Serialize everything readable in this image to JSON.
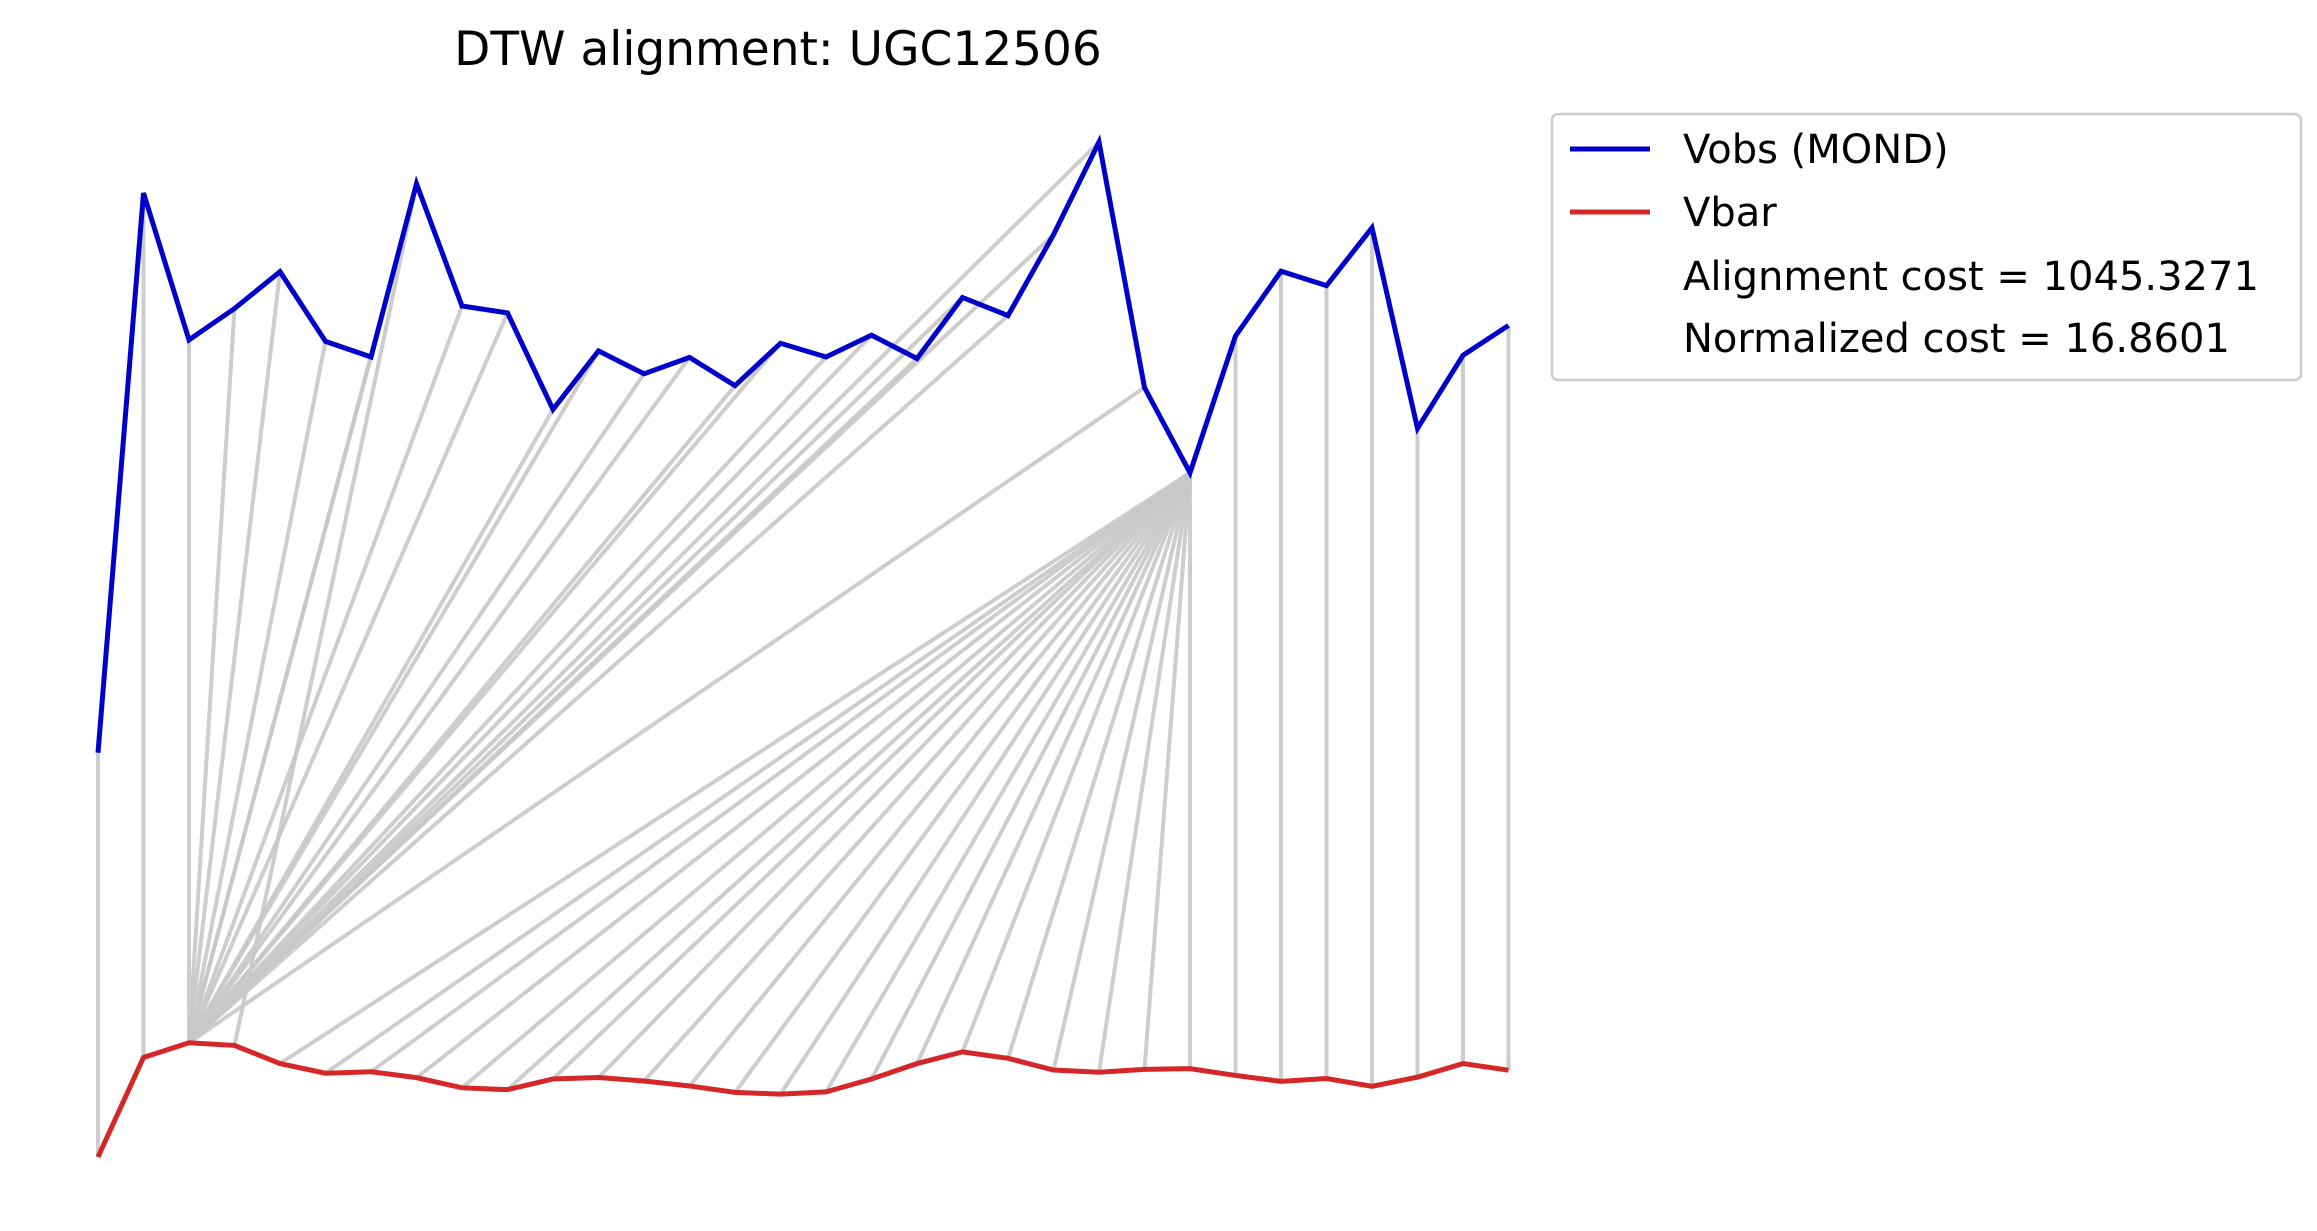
{
  "chart_data": {
    "type": "line",
    "title": "DTW alignment: UGC12506",
    "xlabel": "",
    "ylabel": "",
    "axes_visible": false,
    "grid": false,
    "legend_placement": "outside-upper-right",
    "index": [
      0,
      1,
      2,
      3,
      4,
      5,
      6,
      7,
      8,
      9,
      10,
      11,
      12,
      13,
      14,
      15,
      16,
      17,
      18,
      19,
      20,
      21,
      22,
      23,
      24,
      25,
      26,
      27,
      28,
      29,
      30,
      31
    ],
    "series": [
      {
        "name": "Vobs (MOND)",
        "color": "#0000cc",
        "values": [
          -85.0,
          245.1,
          158.5,
          177.0,
          198.7,
          157.6,
          148.4,
          250.6,
          178.5,
          174.4,
          117.5,
          152.0,
          138.5,
          148.2,
          131.5,
          156.5,
          148.4,
          161.3,
          147.5,
          183.5,
          172.8,
          220.5,
          275.2,
          130.4,
          80.1,
          160.8,
          199.0,
          190.5,
          224.6,
          106.3,
          149.4,
          167.0
        ]
      },
      {
        "name": "Vbar",
        "color": "#d62728",
        "values": [
          -323.4,
          -264.7,
          -256.0,
          -257.6,
          -268.3,
          -274.0,
          -273.1,
          -276.6,
          -282.6,
          -283.7,
          -277.4,
          -276.5,
          -278.6,
          -281.5,
          -285.3,
          -286.3,
          -285.0,
          -277.4,
          -268.3,
          -261.4,
          -265.2,
          -272.1,
          -273.4,
          -271.7,
          -271.3,
          -275.3,
          -278.8,
          -277.1,
          -281.7,
          -276.3,
          -268.3,
          -272.2
        ]
      }
    ],
    "alignment_lines_color": "#c8c8c8",
    "alignment_path": [
      [
        0,
        0
      ],
      [
        1,
        1
      ],
      [
        2,
        2
      ],
      [
        3,
        2
      ],
      [
        4,
        2
      ],
      [
        5,
        2
      ],
      [
        6,
        2
      ],
      [
        7,
        2
      ],
      [
        7,
        3
      ],
      [
        8,
        2
      ],
      [
        9,
        2
      ],
      [
        10,
        2
      ],
      [
        11,
        2
      ],
      [
        12,
        2
      ],
      [
        13,
        2
      ],
      [
        14,
        2
      ],
      [
        15,
        2
      ],
      [
        16,
        2
      ],
      [
        17,
        2
      ],
      [
        18,
        2
      ],
      [
        19,
        2
      ],
      [
        20,
        2
      ],
      [
        21,
        2
      ],
      [
        22,
        2
      ],
      [
        23,
        2
      ],
      [
        24,
        4
      ],
      [
        24,
        5
      ],
      [
        24,
        6
      ],
      [
        24,
        7
      ],
      [
        24,
        8
      ],
      [
        24,
        9
      ],
      [
        24,
        10
      ],
      [
        24,
        11
      ],
      [
        24,
        12
      ],
      [
        24,
        13
      ],
      [
        24,
        14
      ],
      [
        24,
        15
      ],
      [
        24,
        16
      ],
      [
        24,
        17
      ],
      [
        24,
        18
      ],
      [
        24,
        19
      ],
      [
        24,
        20
      ],
      [
        24,
        21
      ],
      [
        24,
        22
      ],
      [
        24,
        23
      ],
      [
        24,
        24
      ],
      [
        25,
        25
      ],
      [
        26,
        26
      ],
      [
        27,
        27
      ],
      [
        28,
        28
      ],
      [
        29,
        29
      ],
      [
        30,
        30
      ],
      [
        31,
        31
      ]
    ],
    "annotations": [
      "Alignment cost = 1045.3271",
      "Normalized cost = 16.8601"
    ]
  }
}
